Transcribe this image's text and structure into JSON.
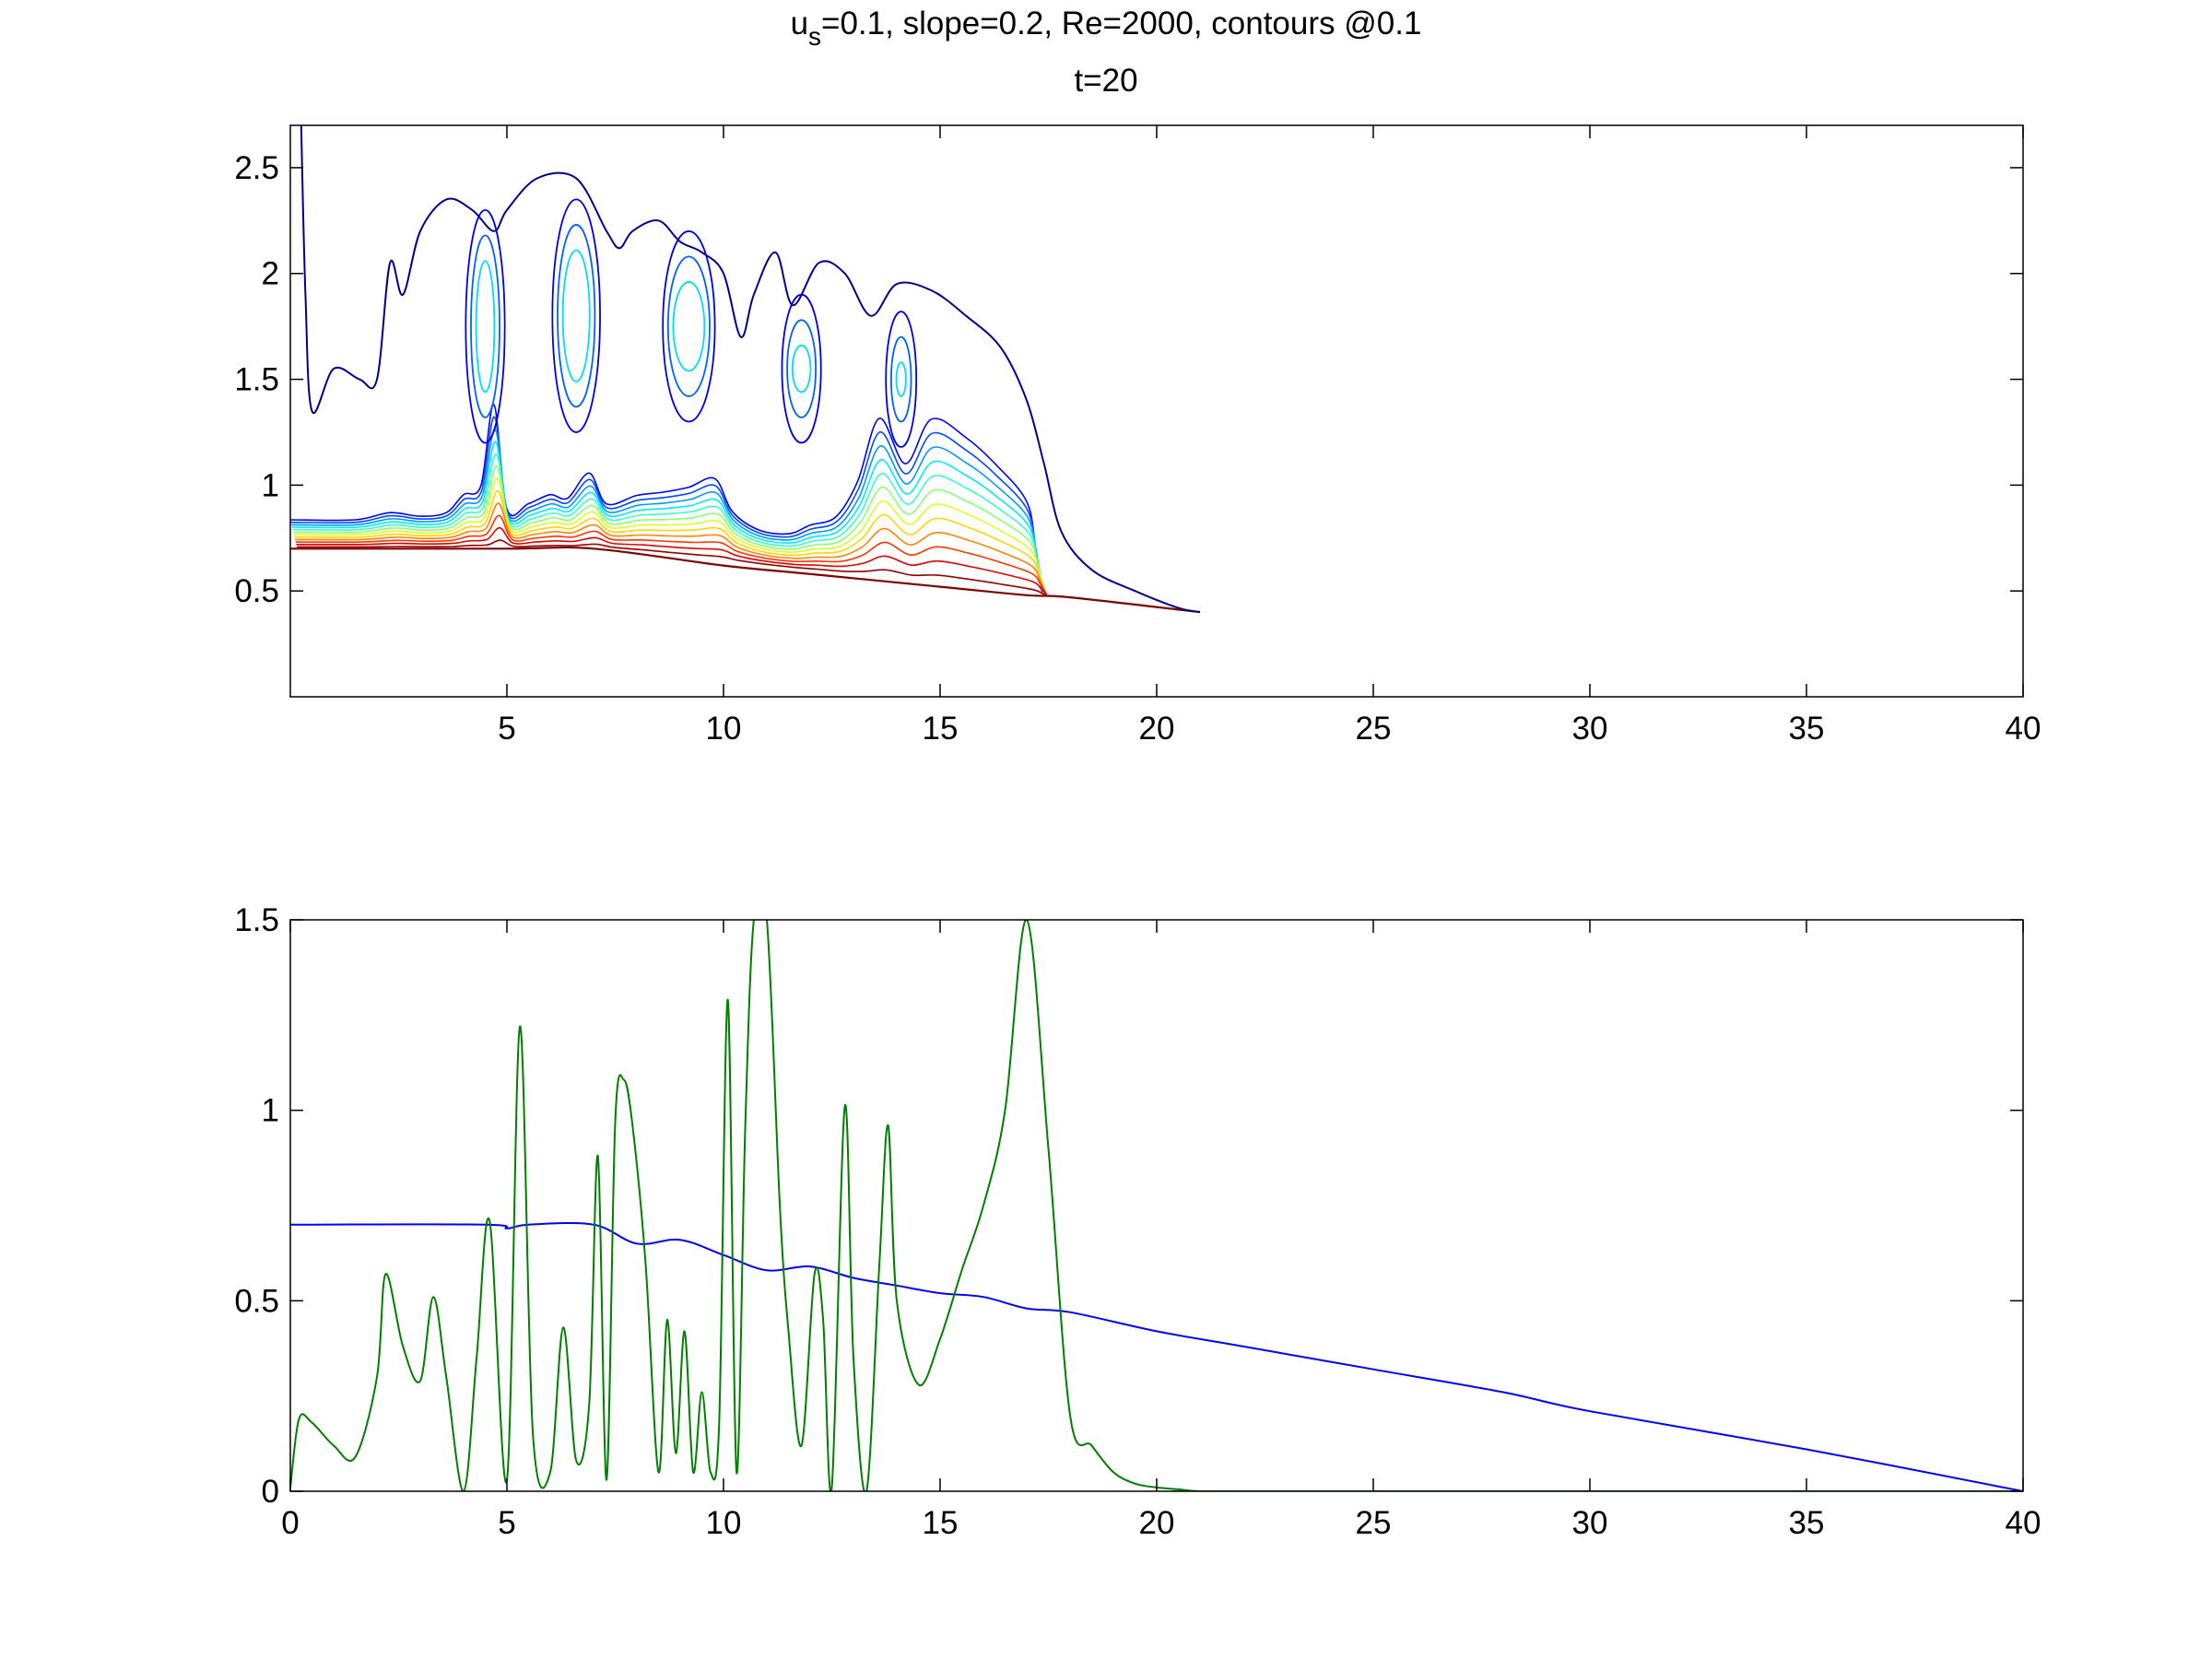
{
  "figure": {
    "title_line1": {
      "u": "u",
      "sub": "s",
      "rest": "=0.1, slope=0.2, Re=2000, contours @0.1"
    },
    "title_line2": "t=20"
  },
  "chart_data": [
    {
      "type": "contour",
      "xlim": [
        0,
        40
      ],
      "ylim": [
        0,
        2.7
      ],
      "x_ticks": [
        5,
        10,
        15,
        20,
        25,
        30,
        35,
        40
      ],
      "x_tick_labels": [
        "5",
        "10",
        "15",
        "20",
        "25",
        "30",
        "35",
        "40"
      ],
      "y_ticks": [
        0.5,
        1,
        1.5,
        2,
        2.5
      ],
      "y_tick_labels": [
        "0.5",
        "1",
        "1.5",
        "2",
        "2.5"
      ],
      "contour_levels": "@0.1",
      "colormap": "jet",
      "grid": false,
      "bottom_boundary": {
        "x": [
          0,
          5,
          7,
          10,
          12,
          15,
          17,
          18,
          21
        ],
        "y": [
          0.7,
          0.7,
          0.7,
          0.62,
          0.58,
          0.52,
          0.48,
          0.47,
          0.4
        ]
      },
      "current_front_x": 17.5,
      "outer_contour_end_x": 21
    },
    {
      "type": "line",
      "xlim": [
        0,
        40
      ],
      "ylim": [
        0,
        1.5
      ],
      "x_ticks": [
        0,
        5,
        10,
        15,
        20,
        25,
        30,
        35,
        40
      ],
      "x_tick_labels": [
        "0",
        "5",
        "10",
        "15",
        "20",
        "25",
        "30",
        "35",
        "40"
      ],
      "y_ticks": [
        0,
        0.5,
        1,
        1.5
      ],
      "y_tick_labels": [
        "0",
        "0.5",
        "1",
        "1.5"
      ],
      "grid": false,
      "series": [
        {
          "color": "#0000ff",
          "x": [
            0,
            4.5,
            5,
            5.5,
            7,
            8,
            9,
            10,
            11,
            12,
            13,
            14,
            15,
            16,
            17,
            18,
            20,
            22,
            25,
            28,
            30,
            35,
            40
          ],
          "y": [
            0.7,
            0.7,
            0.69,
            0.7,
            0.7,
            0.65,
            0.66,
            0.62,
            0.58,
            0.59,
            0.56,
            0.54,
            0.52,
            0.51,
            0.48,
            0.47,
            0.42,
            0.38,
            0.32,
            0.26,
            0.21,
            0.11,
            0
          ]
        },
        {
          "color": "#007f00",
          "x": [
            0,
            0.2,
            0.5,
            1,
            1.5,
            2,
            2.2,
            2.6,
            3,
            3.3,
            3.6,
            4,
            4.3,
            4.6,
            5,
            5.3,
            5.6,
            6,
            6.3,
            6.6,
            6.9,
            7.1,
            7.3,
            7.5,
            7.7,
            7.9,
            8.2,
            8.5,
            8.7,
            8.9,
            9.1,
            9.3,
            9.5,
            9.7,
            9.9,
            10.1,
            10.3,
            10.5,
            10.7,
            11,
            11.3,
            11.5,
            11.8,
            12.1,
            12.3,
            12.5,
            12.8,
            13,
            13.3,
            13.6,
            13.8,
            14,
            14.5,
            15,
            15.5,
            16,
            16.5,
            17,
            17.5,
            18,
            18.5,
            19,
            19.5,
            20,
            20.5,
            21,
            22,
            40
          ],
          "y": [
            0.01,
            0.19,
            0.18,
            0.12,
            0.09,
            0.3,
            0.57,
            0.38,
            0.29,
            0.51,
            0.3,
            0.0,
            0.35,
            0.71,
            0.03,
            1.22,
            0.15,
            0.05,
            0.43,
            0.08,
            0.23,
            0.88,
            0.03,
            0.97,
            1.08,
            0.96,
            0.6,
            0.05,
            0.45,
            0.1,
            0.42,
            0.05,
            0.26,
            0.05,
            0.18,
            1.29,
            0.05,
            0.95,
            1.5,
            1.5,
            0.75,
            0.42,
            0.12,
            0.57,
            0.45,
            0.01,
            1.01,
            0.35,
            0.0,
            0.6,
            0.96,
            0.5,
            0.28,
            0.4,
            0.58,
            0.75,
            1.0,
            1.5,
            0.9,
            0.2,
            0.12,
            0.05,
            0.02,
            0.01,
            0.005,
            0.0,
            0.0,
            0.0
          ]
        }
      ]
    }
  ]
}
